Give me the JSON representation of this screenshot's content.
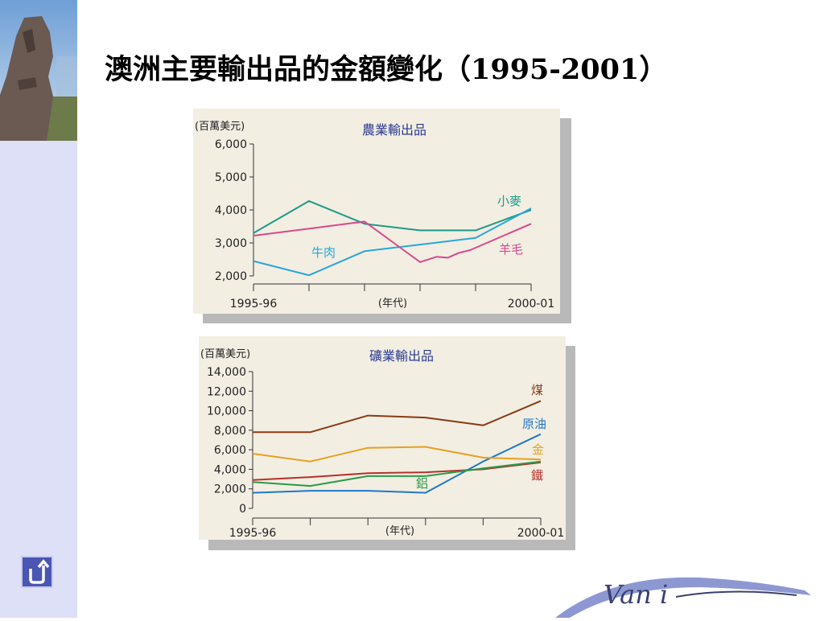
{
  "slide": {
    "title": "澳洲主要輸出品的金額變化（1995-2001）"
  },
  "logo": {
    "text": "Van i"
  },
  "icons": {
    "back": "return-arrow-icon",
    "statue": "moai-statue-icon"
  },
  "chart_data": [
    {
      "type": "line",
      "title": "農業輸出品",
      "unit_label": "(百萬美元)",
      "xlabel": "(年代)",
      "x_tick_labels": [
        {
          "x": 0,
          "label": "1995-96"
        },
        {
          "x": 5,
          "label": "2000-01"
        }
      ],
      "xlim": [
        0,
        5
      ],
      "ylim": [
        2000,
        6000
      ],
      "y_ticks": [
        2000,
        3000,
        4000,
        5000,
        6000
      ],
      "y_tick_labels": [
        "2,000",
        "3,000",
        "4,000",
        "5,000",
        "6,000"
      ],
      "title_color": "#2a3a8f",
      "series": [
        {
          "name": "小麥",
          "color": "#1e9a88",
          "points": [
            [
              0,
              3300
            ],
            [
              1,
              4270
            ],
            [
              2,
              3580
            ],
            [
              3,
              3380
            ],
            [
              4,
              3380
            ],
            [
              5,
              4000
            ]
          ]
        },
        {
          "name": "牛肉",
          "color": "#2aa6d8",
          "points": [
            [
              0,
              2450
            ],
            [
              1,
              2020
            ],
            [
              2,
              2750
            ],
            [
              3,
              2950
            ],
            [
              4,
              3150
            ],
            [
              5,
              4050
            ]
          ]
        },
        {
          "name": "羊毛",
          "color": "#d7498c",
          "points": [
            [
              0,
              3220
            ],
            [
              2,
              3650
            ],
            [
              3,
              2420
            ],
            [
              3.3,
              2580
            ],
            [
              3.5,
              2550
            ],
            [
              3.7,
              2700
            ],
            [
              3.9,
              2780
            ],
            [
              5,
              3580
            ]
          ]
        }
      ]
    },
    {
      "type": "line",
      "title": "礦業輸出品",
      "unit_label": "(百萬美元)",
      "xlabel": "(年代)",
      "x_tick_labels": [
        {
          "x": 0,
          "label": "1995-96"
        },
        {
          "x": 5,
          "label": "2000-01"
        }
      ],
      "xlim": [
        0,
        5
      ],
      "ylim": [
        0,
        14000
      ],
      "y_ticks": [
        0,
        2000,
        4000,
        6000,
        8000,
        10000,
        12000,
        14000
      ],
      "y_tick_labels": [
        "0",
        "2,000",
        "4,000",
        "6,000",
        "8,000",
        "10,000",
        "12,000",
        "14,000"
      ],
      "title_color": "#2a3a8f",
      "series": [
        {
          "name": "煤",
          "color": "#8a3a14",
          "points": [
            [
              0,
              7800
            ],
            [
              1,
              7800
            ],
            [
              2,
              9500
            ],
            [
              3,
              9300
            ],
            [
              4,
              8500
            ],
            [
              5,
              11000
            ]
          ]
        },
        {
          "name": "原油",
          "color": "#1f78c8",
          "points": [
            [
              0,
              1600
            ],
            [
              1,
              1800
            ],
            [
              2,
              1800
            ],
            [
              3,
              1600
            ],
            [
              4,
              4800
            ],
            [
              5,
              7600
            ]
          ]
        },
        {
          "name": "金",
          "color": "#e8a020",
          "points": [
            [
              0,
              5600
            ],
            [
              1,
              4800
            ],
            [
              2,
              6200
            ],
            [
              3,
              6300
            ],
            [
              4,
              5200
            ],
            [
              5,
              5000
            ]
          ]
        },
        {
          "name": "鐵",
          "color": "#b8302a",
          "points": [
            [
              0,
              2900
            ],
            [
              1,
              3200
            ],
            [
              2,
              3600
            ],
            [
              3,
              3700
            ],
            [
              4,
              4000
            ],
            [
              5,
              4700
            ]
          ]
        },
        {
          "name": "鋁",
          "color": "#2a9a48",
          "points": [
            [
              0,
              2700
            ],
            [
              1,
              2300
            ],
            [
              2,
              3300
            ],
            [
              3,
              3300
            ],
            [
              4,
              4100
            ],
            [
              5,
              4800
            ]
          ]
        }
      ]
    }
  ]
}
